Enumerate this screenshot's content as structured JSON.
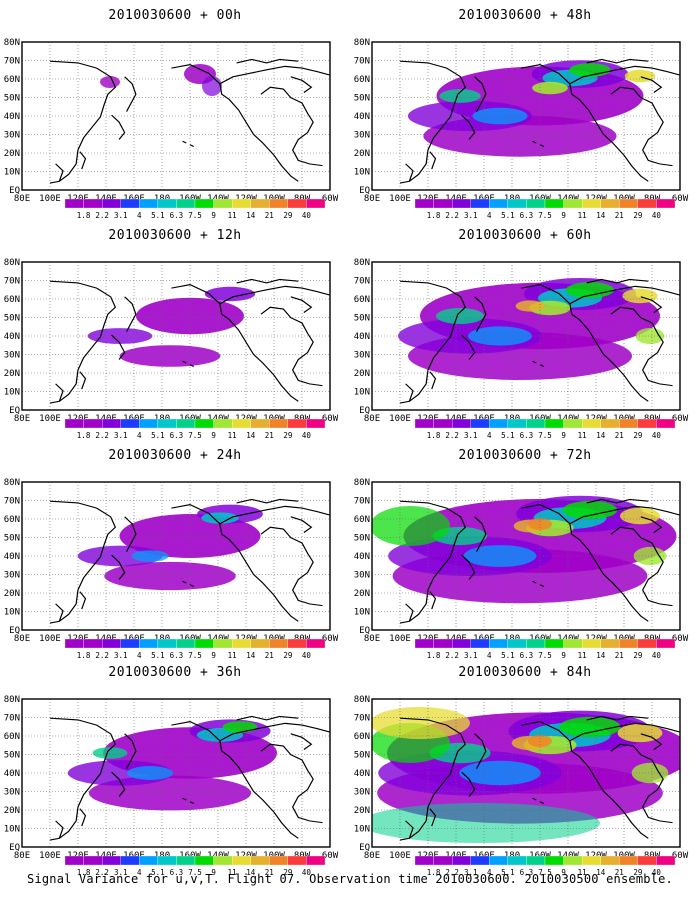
{
  "panels": [
    {
      "title": "2010030600 + 00h",
      "level": 0
    },
    {
      "title": "2010030600 + 48h",
      "level": 4
    },
    {
      "title": "2010030600 + 12h",
      "level": 1
    },
    {
      "title": "2010030600 + 60h",
      "level": 5
    },
    {
      "title": "2010030600 + 24h",
      "level": 2
    },
    {
      "title": "2010030600 + 72h",
      "level": 6
    },
    {
      "title": "2010030600 + 36h",
      "level": 3
    },
    {
      "title": "2010030600 + 84h",
      "level": 7
    }
  ],
  "lat_labels": [
    "80N",
    "70N",
    "60N",
    "50N",
    "40N",
    "30N",
    "20N",
    "10N",
    "EQ"
  ],
  "lon_labels": [
    "80E",
    "100E",
    "120E",
    "140E",
    "160E",
    "180",
    "160W",
    "140W",
    "120W",
    "100W",
    "80W",
    "60W"
  ],
  "colorbar": {
    "labels": [
      "1.8",
      "2.2",
      "3.1",
      "4",
      "5.1",
      "6.3",
      "7.5",
      "9",
      "11",
      "14",
      "21",
      "29",
      "40"
    ],
    "colors": [
      "#a000c8",
      "#8200dc",
      "#1e3cff",
      "#00a0ff",
      "#00c8c8",
      "#00d28c",
      "#00dc00",
      "#a0e632",
      "#e6dc32",
      "#e6af2d",
      "#f08228",
      "#fa3c3c",
      "#f00082"
    ]
  },
  "footer": "Signal Variance for u,v,T. Flight 07. Observation time 2010030600. 2010030500 ensemble."
}
